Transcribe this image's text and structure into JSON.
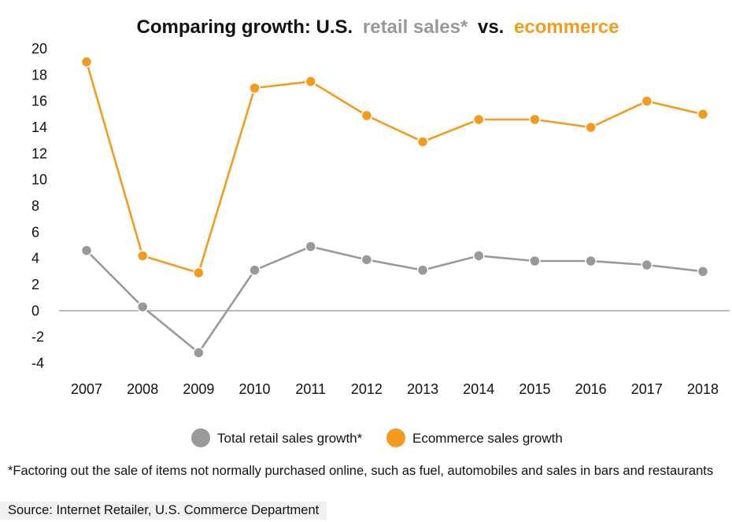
{
  "chart_data": {
    "type": "line",
    "title": {
      "prefix": "Comparing growth: U.S.",
      "retail_part": "retail sales*",
      "middle": "vs.",
      "ecommerce_part": "ecommerce"
    },
    "x": [
      "2007",
      "2008",
      "2009",
      "2010",
      "2011",
      "2012",
      "2013",
      "2014",
      "2015",
      "2016",
      "2017",
      "2018"
    ],
    "yticks": [
      "20",
      "18",
      "16",
      "14",
      "12",
      "10",
      "8",
      "6",
      "4",
      "2",
      "0",
      "-2",
      "-4"
    ],
    "ylim": [
      -4,
      20
    ],
    "series": [
      {
        "name": "Total retail sales growth*",
        "color": "#999999",
        "values": [
          4.6,
          0.3,
          -3.2,
          3.1,
          4.9,
          3.9,
          3.1,
          4.2,
          3.8,
          3.8,
          3.5,
          3.0
        ]
      },
      {
        "name": "Ecommerce sales growth",
        "color": "#f39b1e",
        "values": [
          19.0,
          4.2,
          2.9,
          17.0,
          17.5,
          14.9,
          12.9,
          14.6,
          14.6,
          14.0,
          16.0,
          15.0
        ]
      }
    ],
    "legend_position": "bottom-center",
    "grid": false,
    "zero_line": true
  },
  "footnote": "*Factoring out the sale of items not normally purchased online, such as fuel, automobiles and sales in bars and restaurants",
  "source": "Source: Internet Retailer, U.S. Commerce Department",
  "colors": {
    "retail": "#999999",
    "ecommerce": "#f39b1e",
    "axis": "#888888"
  }
}
